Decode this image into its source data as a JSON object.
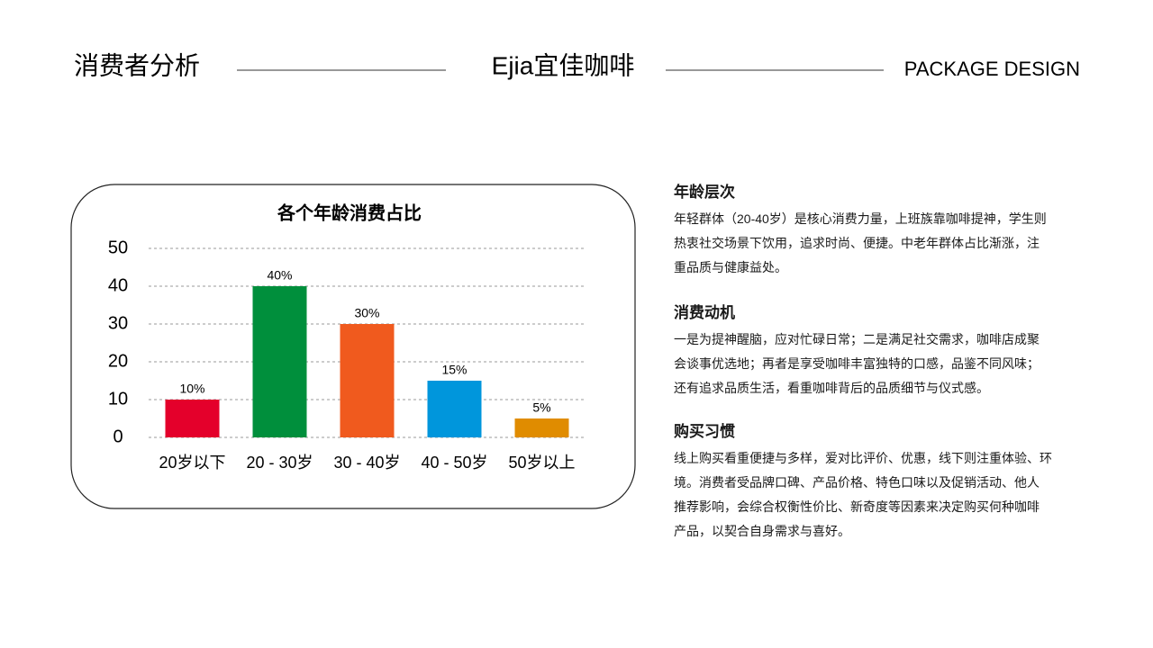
{
  "header": {
    "left": "消费者分析",
    "center": "Ejia宜佳咖啡",
    "right": "PACKAGE DESIGN"
  },
  "chart_data": {
    "type": "bar",
    "title": "各个年龄消费占比",
    "categories": [
      "20岁以下",
      "20 - 30岁",
      "30 - 40岁",
      "40 - 50岁",
      "50岁以上"
    ],
    "values": [
      10,
      40,
      30,
      15,
      5
    ],
    "value_labels": [
      "10%",
      "40%",
      "30%",
      "15%",
      "5%"
    ],
    "colors": [
      "#e4002b",
      "#008f3c",
      "#f05a1e",
      "#0096dc",
      "#e08c00"
    ],
    "ylim": [
      0,
      50
    ],
    "yticks": [
      0,
      10,
      20,
      30,
      40,
      50
    ],
    "grid": true
  },
  "sections": [
    {
      "heading": "年龄层次",
      "lines": [
        "年轻群体（20-40岁）是核心消费力量，上班族靠咖啡提神，学生则",
        "热衷社交场景下饮用，追求时尚、便捷。中老年群体占比渐涨，注",
        "重品质与健康益处。"
      ]
    },
    {
      "heading": "消费动机",
      "lines": [
        "一是为提神醒脑，应对忙碌日常；二是满足社交需求，咖啡店成聚",
        "会谈事优选地；再者是享受咖啡丰富独特的口感，品鉴不同风味；",
        "还有追求品质生活，看重咖啡背后的品质细节与仪式感。"
      ]
    },
    {
      "heading": "购买习惯",
      "lines": [
        "线上购买看重便捷与多样，爱对比评价、优惠，线下则注重体验、环",
        "境。消费者受品牌口碑、产品价格、特色口味以及促销活动、他人",
        "推荐影响，会综合权衡性价比、新奇度等因素来决定购买何种咖啡",
        "产品，以契合自身需求与喜好。"
      ]
    }
  ]
}
